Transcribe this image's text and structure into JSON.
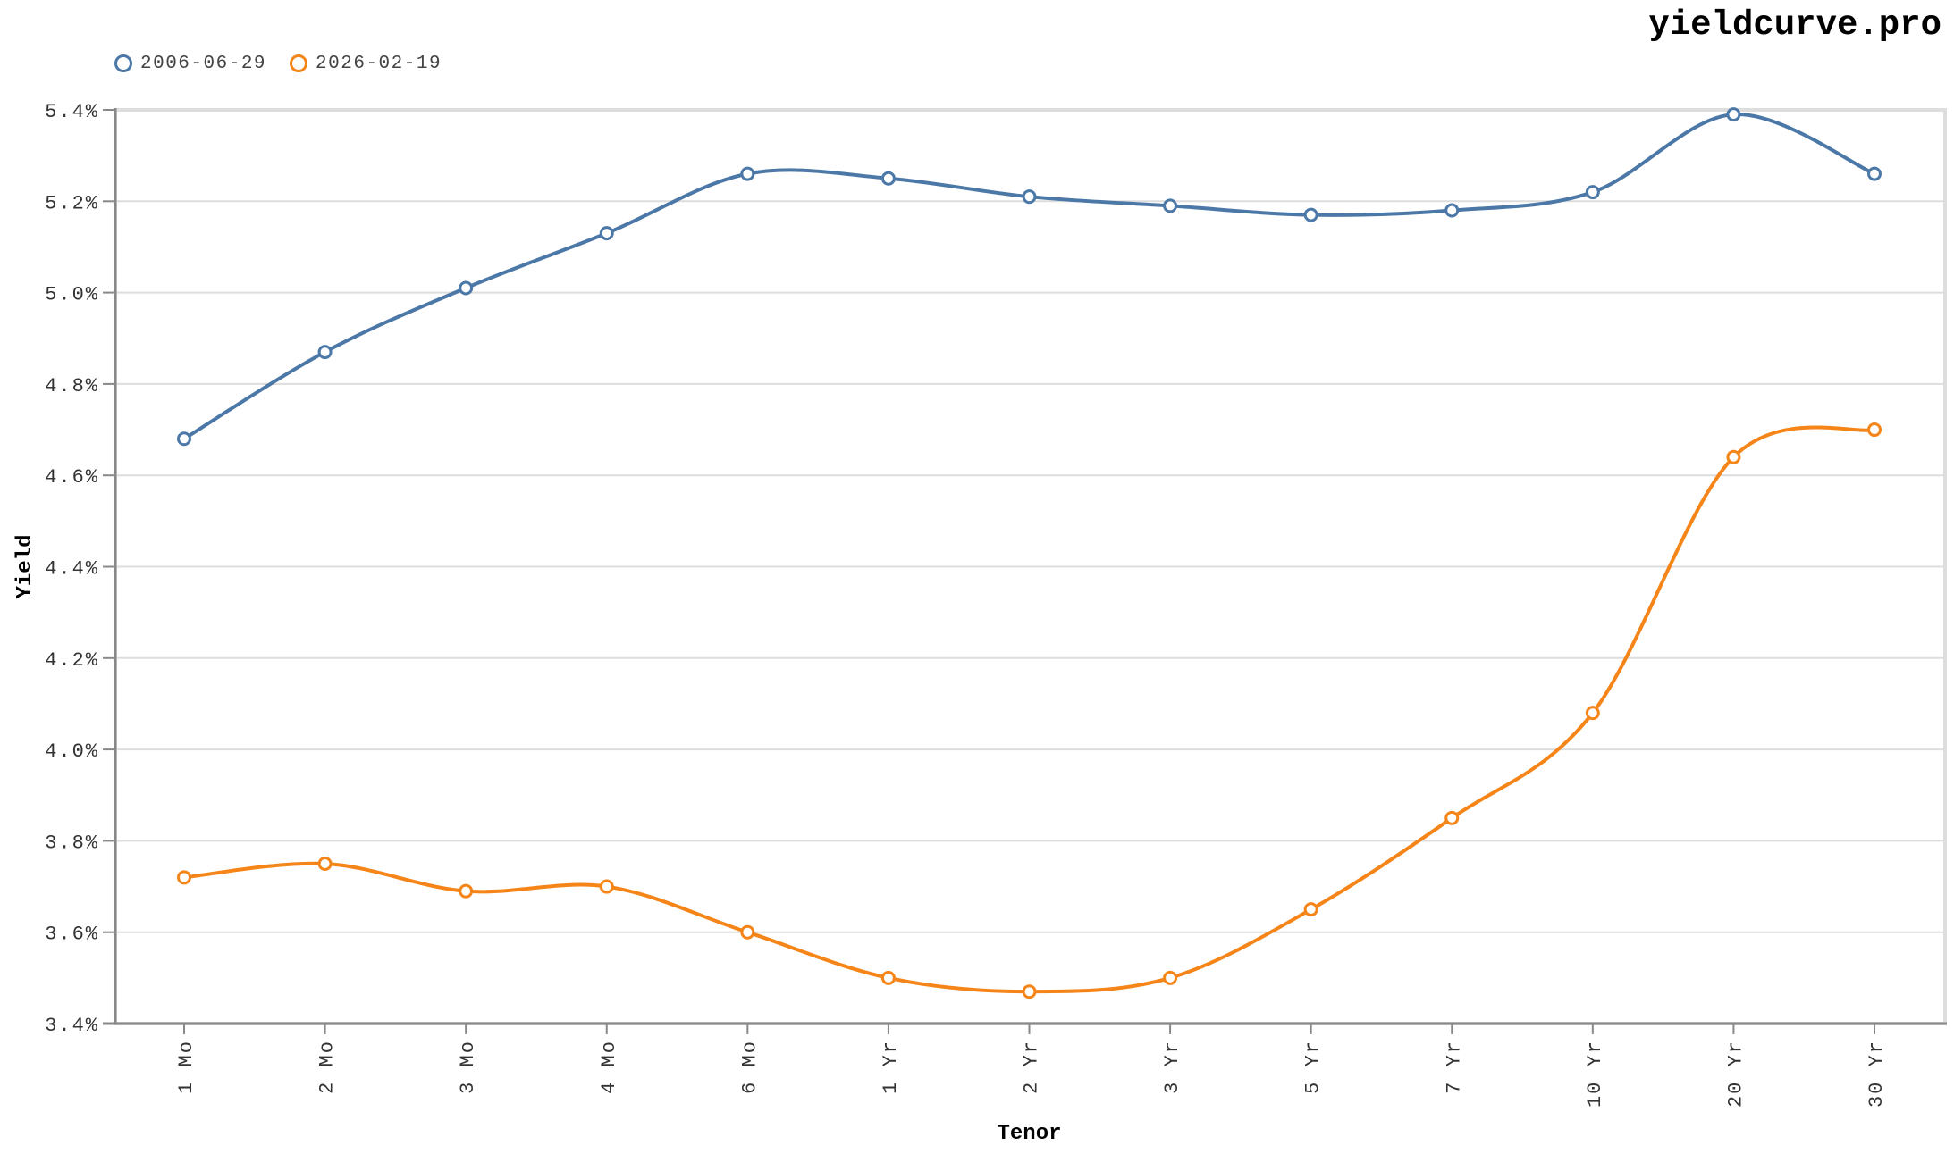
{
  "brand": {
    "title": "yieldcurve.pro"
  },
  "legend": {
    "items": [
      {
        "label": "2006-06-29",
        "color": "#4c78a8"
      },
      {
        "label": "2026-02-19",
        "color": "#f58518"
      }
    ]
  },
  "chart_data": {
    "type": "line",
    "title": "",
    "xlabel": "Tenor",
    "ylabel": "Yield",
    "categories": [
      "1 Mo",
      "2 Mo",
      "3 Mo",
      "4 Mo",
      "6 Mo",
      "1 Yr",
      "2 Yr",
      "3 Yr",
      "5 Yr",
      "7 Yr",
      "10 Yr",
      "20 Yr",
      "30 Yr"
    ],
    "series": [
      {
        "name": "2006-06-29",
        "color": "#4c78a8",
        "values": [
          4.68,
          4.87,
          5.01,
          5.13,
          5.26,
          5.25,
          5.21,
          5.19,
          5.17,
          5.18,
          5.22,
          5.39,
          5.26
        ]
      },
      {
        "name": "2026-02-19",
        "color": "#f58518",
        "values": [
          3.72,
          3.75,
          3.69,
          3.7,
          3.6,
          3.5,
          3.47,
          3.5,
          3.65,
          3.85,
          4.08,
          4.64,
          4.7
        ]
      }
    ],
    "ylim": [
      3.4,
      5.4
    ],
    "yticks": [
      3.4,
      3.6,
      3.8,
      4.0,
      4.2,
      4.4,
      4.6,
      4.8,
      5.0,
      5.2,
      5.4
    ],
    "ytick_labels": [
      "3.4%",
      "3.6%",
      "3.8%",
      "4.0%",
      "4.2%",
      "4.4%",
      "4.6%",
      "4.8%",
      "5.0%",
      "5.2%",
      "5.4%"
    ],
    "grid": true,
    "legend_position": "top-left",
    "interpolation": "smooth",
    "markers": "hollow-circle"
  }
}
